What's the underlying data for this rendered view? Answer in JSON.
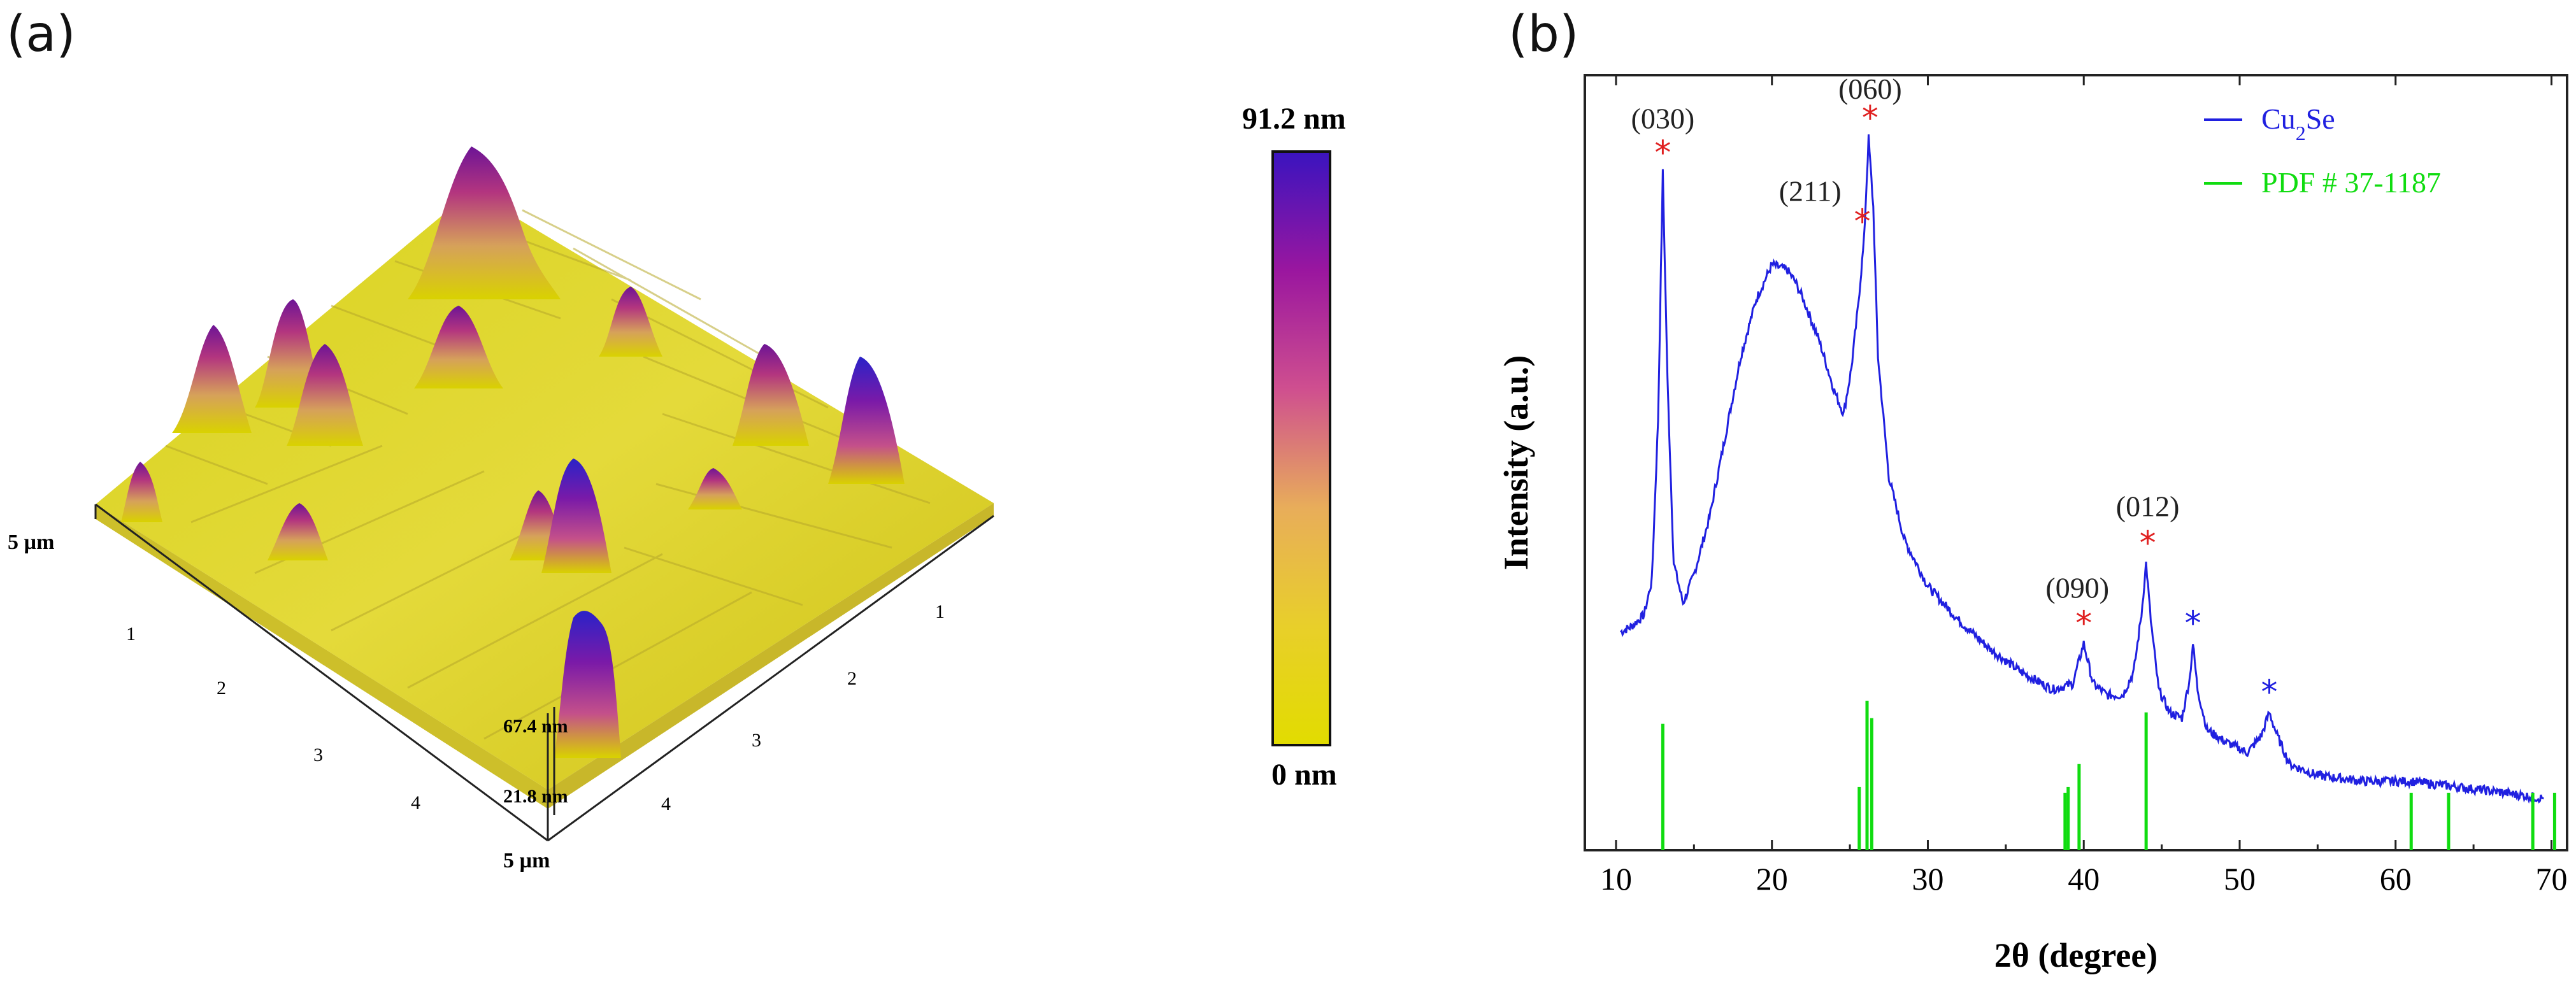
{
  "panel_a": {
    "label": "(a)",
    "afm": {
      "x_axis_end_label": "5 µm",
      "y_axis_end_label": "5 µm",
      "x_ticks": [
        "1",
        "2",
        "3",
        "4"
      ],
      "y_ticks": [
        "1",
        "2",
        "3",
        "4"
      ],
      "height_label_top": "67.4 nm",
      "height_label_bottom": "21.8 nm"
    },
    "colorbar": {
      "max_label": "91.2 nm",
      "min_label": "0 nm",
      "stops": [
        "#e2dc00",
        "#e8cf2a",
        "#e8ad5a",
        "#cf4f8f",
        "#9a169f",
        "#3a14bf"
      ]
    }
  },
  "panel_b": {
    "label": "(b)"
  },
  "chart_data": {
    "type": "line",
    "xlabel": "2θ (degree)",
    "ylabel": "Intensity (a.u.)",
    "xlim": [
      8,
      71
    ],
    "x_ticks": [
      "10",
      "20",
      "30",
      "40",
      "50",
      "60",
      "70"
    ],
    "series": [
      {
        "name": "Cu2Se",
        "name_main": "Cu",
        "name_sub": "2",
        "name_tail": "Se",
        "color": "#2020e0",
        "x": [
          10.3,
          11,
          11.8,
          12.3,
          12.7,
          13.0,
          13.3,
          13.7,
          14.3,
          15,
          16,
          17,
          18,
          19,
          20,
          21,
          21.5,
          22,
          23,
          24,
          24.6,
          25.1,
          25.5,
          25.9,
          26.2,
          26.5,
          26.8,
          27.5,
          28.5,
          30,
          32,
          34,
          36,
          38,
          39.3,
          40.0,
          40.6,
          41.5,
          42.5,
          43.2,
          43.7,
          44.0,
          44.3,
          44.8,
          45.5,
          46.3,
          46.8,
          47.0,
          47.3,
          47.9,
          49,
          50.5,
          51.4,
          51.9,
          52.4,
          53.2,
          55,
          58,
          61,
          64,
          67,
          69.5
        ],
        "y": [
          38,
          39,
          41,
          47,
          75,
          118,
          82,
          50,
          43,
          48,
          58,
          72,
          86,
          96,
          102,
          101,
          99,
          96,
          89,
          80,
          76,
          84,
          94,
          106,
          124,
          112,
          86,
          65,
          54,
          46,
          40,
          35,
          31,
          28,
          29,
          36,
          29,
          27,
          27,
          31,
          41,
          50,
          40,
          28,
          24,
          23,
          30,
          36,
          28,
          21,
          19,
          17,
          20,
          24,
          20,
          15,
          13,
          12,
          12,
          11,
          10,
          9
        ]
      },
      {
        "name": "PDF # 37-1187",
        "color": "#10dc10",
        "type": "stick",
        "x": [
          13.0,
          25.6,
          26.1,
          26.4,
          38.8,
          39.0,
          39.7,
          44.0,
          61.0,
          63.4,
          68.8,
          70.2
        ],
        "y": [
          22,
          11,
          26,
          23,
          10,
          11,
          15,
          24,
          10,
          10,
          10,
          10
        ]
      }
    ],
    "peak_labels": [
      {
        "text": "(030)",
        "x": 13.0
      },
      {
        "text": "(060)",
        "x": 26.3
      },
      {
        "text": "(211)",
        "x": 25.8
      },
      {
        "text": "(090)",
        "x": 40.0
      },
      {
        "text": "(012)",
        "x": 44.1
      }
    ],
    "markers": [
      {
        "x": 13.0,
        "color": "#e02020"
      },
      {
        "x": 26.3,
        "color": "#e02020"
      },
      {
        "x": 25.8,
        "color": "#e02020"
      },
      {
        "x": 40.0,
        "color": "#e02020"
      },
      {
        "x": 44.1,
        "color": "#e02020"
      },
      {
        "x": 47.0,
        "color": "#2020e0"
      },
      {
        "x": 51.9,
        "color": "#2020e0"
      }
    ],
    "legend": "top-right"
  }
}
